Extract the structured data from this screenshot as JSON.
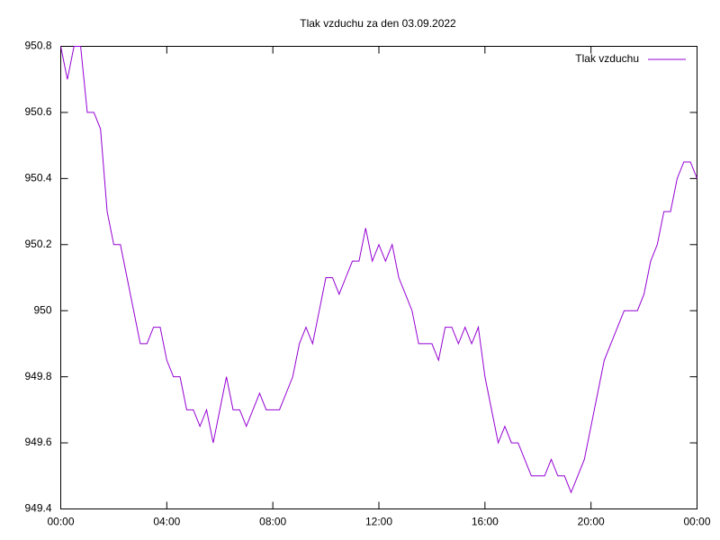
{
  "chart_data": {
    "type": "line",
    "title": "Tlak vzduchu za den 03.09.2022",
    "x": [
      0,
      0.25,
      0.5,
      0.75,
      1,
      1.25,
      1.5,
      1.75,
      2,
      2.25,
      2.5,
      2.75,
      3,
      3.25,
      3.5,
      3.75,
      4,
      4.25,
      4.5,
      4.75,
      5,
      5.25,
      5.5,
      5.75,
      6,
      6.25,
      6.5,
      6.75,
      7,
      7.25,
      7.5,
      7.75,
      8,
      8.25,
      8.5,
      8.75,
      9,
      9.25,
      9.5,
      9.75,
      10,
      10.25,
      10.5,
      10.75,
      11,
      11.25,
      11.5,
      11.75,
      12,
      12.25,
      12.5,
      12.75,
      13,
      13.25,
      13.5,
      13.75,
      14,
      14.25,
      14.5,
      14.75,
      15,
      15.25,
      15.5,
      15.75,
      16,
      16.25,
      16.5,
      16.75,
      17,
      17.25,
      17.5,
      17.75,
      18,
      18.25,
      18.5,
      18.75,
      19,
      19.25,
      19.5,
      19.75,
      20,
      20.25,
      20.5,
      20.75,
      21,
      21.25,
      21.5,
      21.75,
      22,
      22.25,
      22.5,
      22.75,
      23,
      23.25,
      23.5,
      23.75,
      24
    ],
    "series": [
      {
        "name": "Tlak vzduchu",
        "color": "#9400d3",
        "values": [
          950.8,
          950.7,
          950.8,
          950.8,
          950.6,
          950.6,
          950.55,
          950.3,
          950.2,
          950.2,
          950.1,
          950.0,
          949.9,
          949.9,
          949.95,
          949.95,
          949.85,
          949.8,
          949.8,
          949.7,
          949.7,
          949.65,
          949.7,
          949.6,
          949.7,
          949.8,
          949.7,
          949.7,
          949.65,
          949.7,
          949.75,
          949.7,
          949.7,
          949.7,
          949.75,
          949.8,
          949.9,
          949.95,
          949.9,
          950.0,
          950.1,
          950.1,
          950.05,
          950.1,
          950.15,
          950.15,
          950.25,
          950.15,
          950.2,
          950.15,
          950.2,
          950.1,
          950.05,
          950.0,
          949.9,
          949.9,
          949.9,
          949.85,
          949.95,
          949.95,
          949.9,
          949.95,
          949.9,
          949.95,
          949.8,
          949.7,
          949.6,
          949.65,
          949.6,
          949.6,
          949.55,
          949.5,
          949.5,
          949.5,
          949.55,
          949.5,
          949.5,
          949.45,
          949.5,
          949.55,
          949.65,
          949.75,
          949.85,
          949.9,
          949.95,
          950.0,
          950.0,
          950.0,
          950.05,
          950.15,
          950.2,
          950.3,
          950.3,
          950.4,
          950.45,
          950.45,
          950.4
        ]
      }
    ],
    "xlim": [
      0,
      24
    ],
    "xticks": [
      {
        "value": 0,
        "label": "00:00"
      },
      {
        "value": 4,
        "label": "04:00"
      },
      {
        "value": 8,
        "label": "08:00"
      },
      {
        "value": 12,
        "label": "12:00"
      },
      {
        "value": 16,
        "label": "16:00"
      },
      {
        "value": 20,
        "label": "20:00"
      },
      {
        "value": 24,
        "label": "00:00"
      }
    ],
    "ylim": [
      949.4,
      950.8
    ],
    "yticks": [
      949.4,
      949.6,
      949.8,
      950,
      950.2,
      950.4,
      950.6,
      950.8
    ],
    "grid": false,
    "legend": "top-right"
  }
}
